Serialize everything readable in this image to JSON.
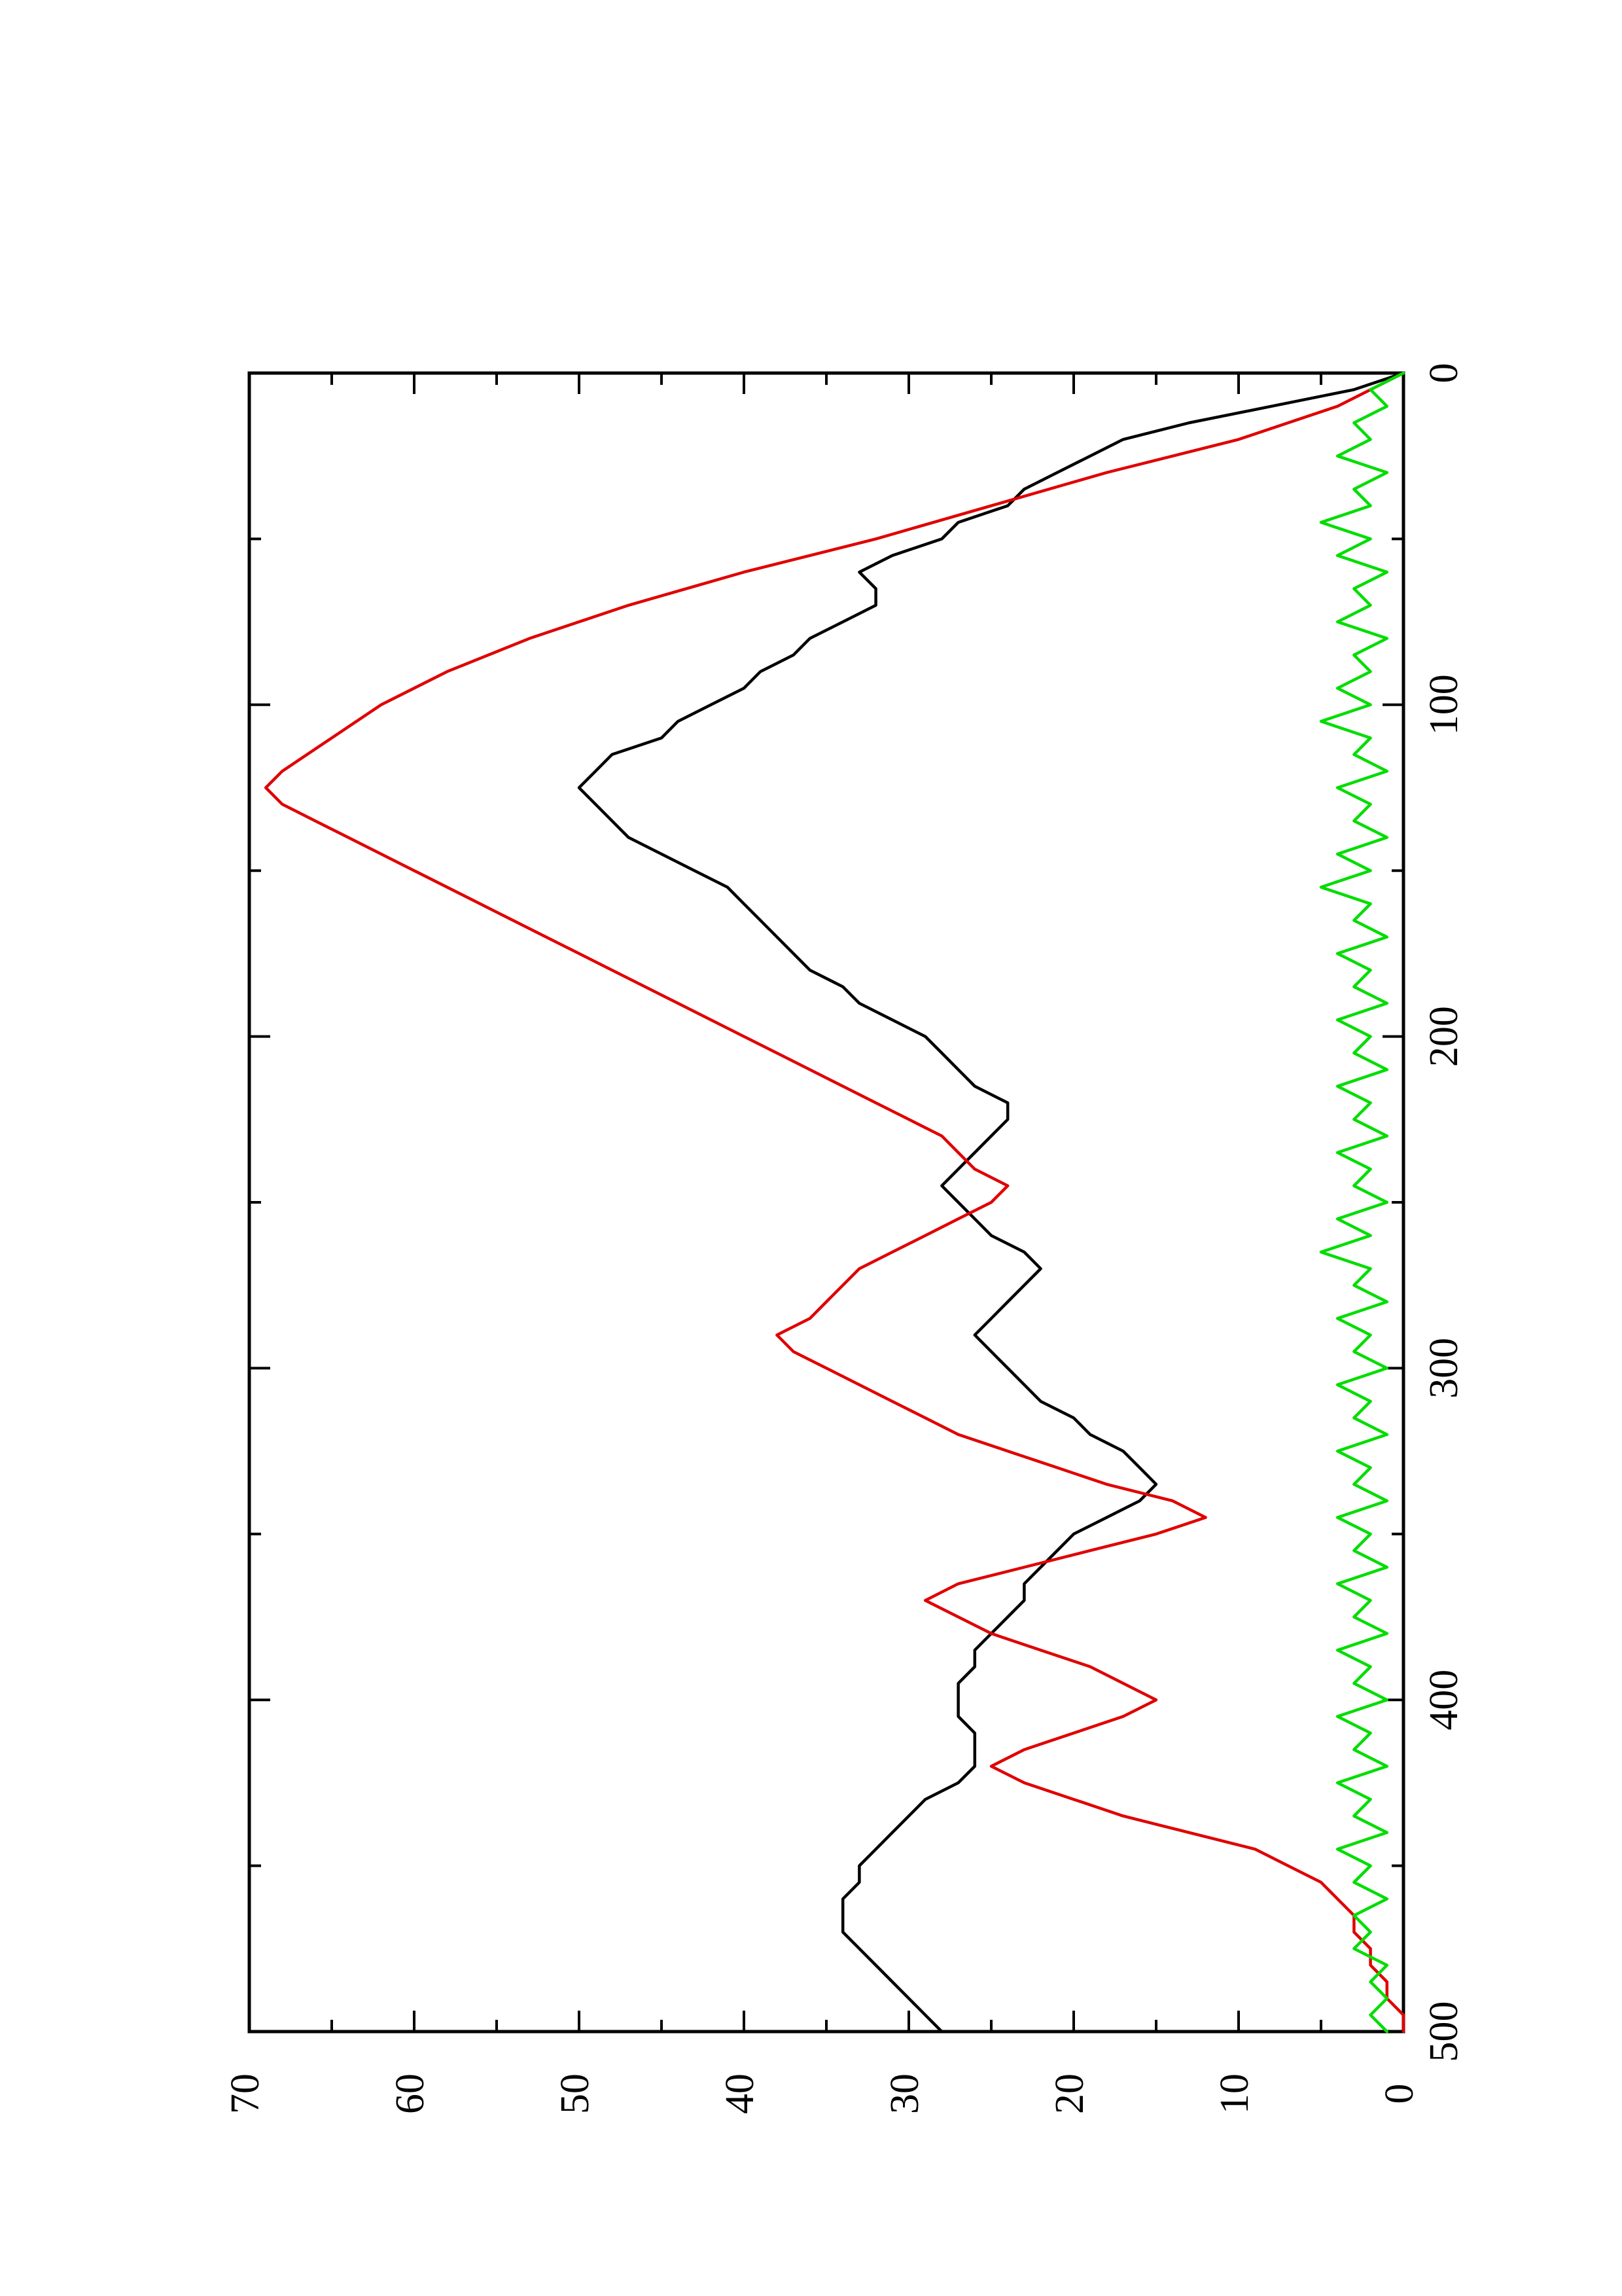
{
  "chart_data": {
    "type": "line",
    "title": "",
    "xlabel": "",
    "ylabel": "",
    "xlim": [
      0,
      500
    ],
    "ylim": [
      0,
      70
    ],
    "x_ticks": [
      0,
      100,
      200,
      300,
      400,
      500
    ],
    "x_tick_labels": [
      "0",
      "100",
      "200",
      "300",
      "400",
      "500"
    ],
    "y_ticks": [
      0,
      10,
      20,
      30,
      40,
      50,
      60,
      70
    ],
    "y_tick_labels": [
      "0",
      "10",
      "20",
      "30",
      "40",
      "50",
      "60",
      "70"
    ],
    "orientation": "rotated 90° counter-clockwise",
    "grid": false,
    "legend": "none",
    "series": [
      {
        "color": "#000000",
        "points": [
          [
            0,
            0
          ],
          [
            5,
            3
          ],
          [
            10,
            8
          ],
          [
            15,
            13
          ],
          [
            20,
            17
          ],
          [
            25,
            19
          ],
          [
            30,
            21
          ],
          [
            35,
            23
          ],
          [
            40,
            24
          ],
          [
            45,
            27
          ],
          [
            50,
            28
          ],
          [
            55,
            31
          ],
          [
            60,
            33
          ],
          [
            65,
            32
          ],
          [
            70,
            32
          ],
          [
            75,
            34
          ],
          [
            80,
            36
          ],
          [
            85,
            37
          ],
          [
            90,
            39
          ],
          [
            95,
            40
          ],
          [
            100,
            42
          ],
          [
            105,
            44
          ],
          [
            110,
            45
          ],
          [
            115,
            48
          ],
          [
            120,
            49
          ],
          [
            125,
            50
          ],
          [
            130,
            49
          ],
          [
            135,
            48
          ],
          [
            140,
            47
          ],
          [
            145,
            45
          ],
          [
            150,
            43
          ],
          [
            155,
            41
          ],
          [
            160,
            40
          ],
          [
            165,
            39
          ],
          [
            170,
            38
          ],
          [
            175,
            37
          ],
          [
            180,
            36
          ],
          [
            185,
            34
          ],
          [
            190,
            33
          ],
          [
            195,
            31
          ],
          [
            200,
            29
          ],
          [
            205,
            28
          ],
          [
            210,
            27
          ],
          [
            215,
            26
          ],
          [
            220,
            24
          ],
          [
            225,
            24
          ],
          [
            230,
            25
          ],
          [
            235,
            26
          ],
          [
            240,
            27
          ],
          [
            245,
            28
          ],
          [
            250,
            27
          ],
          [
            255,
            26
          ],
          [
            260,
            25
          ],
          [
            265,
            23
          ],
          [
            270,
            22
          ],
          [
            275,
            23
          ],
          [
            280,
            24
          ],
          [
            285,
            25
          ],
          [
            290,
            26
          ],
          [
            295,
            25
          ],
          [
            300,
            24
          ],
          [
            305,
            23
          ],
          [
            310,
            22
          ],
          [
            315,
            20
          ],
          [
            320,
            19
          ],
          [
            325,
            17
          ],
          [
            330,
            16
          ],
          [
            335,
            15
          ],
          [
            340,
            16
          ],
          [
            345,
            18
          ],
          [
            350,
            20
          ],
          [
            355,
            21
          ],
          [
            360,
            22
          ],
          [
            365,
            23
          ],
          [
            370,
            23
          ],
          [
            375,
            24
          ],
          [
            380,
            25
          ],
          [
            385,
            26
          ],
          [
            390,
            26
          ],
          [
            395,
            27
          ],
          [
            400,
            27
          ],
          [
            405,
            27
          ],
          [
            410,
            26
          ],
          [
            415,
            26
          ],
          [
            420,
            26
          ],
          [
            425,
            27
          ],
          [
            430,
            29
          ],
          [
            435,
            30
          ],
          [
            440,
            31
          ],
          [
            445,
            32
          ],
          [
            450,
            33
          ],
          [
            455,
            33
          ],
          [
            460,
            34
          ],
          [
            465,
            34
          ],
          [
            470,
            34
          ],
          [
            475,
            33
          ],
          [
            480,
            32
          ],
          [
            485,
            31
          ],
          [
            490,
            30
          ],
          [
            495,
            29
          ],
          [
            500,
            28
          ]
        ]
      },
      {
        "color": "#e00000",
        "points": [
          [
            0,
            0
          ],
          [
            10,
            4
          ],
          [
            20,
            10
          ],
          [
            30,
            18
          ],
          [
            40,
            25
          ],
          [
            50,
            32
          ],
          [
            60,
            40
          ],
          [
            70,
            47
          ],
          [
            80,
            53
          ],
          [
            90,
            58
          ],
          [
            100,
            62
          ],
          [
            110,
            65
          ],
          [
            120,
            68
          ],
          [
            125,
            69
          ],
          [
            130,
            68
          ],
          [
            135,
            66
          ],
          [
            140,
            64
          ],
          [
            150,
            60
          ],
          [
            160,
            56
          ],
          [
            170,
            52
          ],
          [
            180,
            48
          ],
          [
            190,
            44
          ],
          [
            200,
            40
          ],
          [
            205,
            38
          ],
          [
            210,
            36
          ],
          [
            215,
            34
          ],
          [
            220,
            32
          ],
          [
            225,
            30
          ],
          [
            230,
            28
          ],
          [
            235,
            27
          ],
          [
            240,
            26
          ],
          [
            245,
            24
          ],
          [
            250,
            25
          ],
          [
            255,
            27
          ],
          [
            260,
            29
          ],
          [
            265,
            31
          ],
          [
            270,
            33
          ],
          [
            275,
            34
          ],
          [
            280,
            35
          ],
          [
            285,
            36
          ],
          [
            290,
            38
          ],
          [
            295,
            37
          ],
          [
            300,
            35
          ],
          [
            305,
            33
          ],
          [
            310,
            31
          ],
          [
            315,
            29
          ],
          [
            320,
            27
          ],
          [
            325,
            24
          ],
          [
            330,
            21
          ],
          [
            335,
            18
          ],
          [
            340,
            14
          ],
          [
            345,
            12
          ],
          [
            350,
            15
          ],
          [
            355,
            19
          ],
          [
            360,
            23
          ],
          [
            365,
            27
          ],
          [
            370,
            29
          ],
          [
            375,
            27
          ],
          [
            380,
            25
          ],
          [
            385,
            22
          ],
          [
            390,
            19
          ],
          [
            395,
            17
          ],
          [
            400,
            15
          ],
          [
            405,
            17
          ],
          [
            410,
            20
          ],
          [
            415,
            23
          ],
          [
            420,
            25
          ],
          [
            425,
            23
          ],
          [
            430,
            20
          ],
          [
            435,
            17
          ],
          [
            440,
            13
          ],
          [
            445,
            9
          ],
          [
            450,
            7
          ],
          [
            455,
            5
          ],
          [
            460,
            4
          ],
          [
            465,
            3
          ],
          [
            470,
            3
          ],
          [
            475,
            2
          ],
          [
            480,
            2
          ],
          [
            485,
            1
          ],
          [
            490,
            1
          ],
          [
            495,
            0
          ],
          [
            500,
            0
          ]
        ]
      },
      {
        "color": "#00dd00",
        "points": [
          [
            0,
            0
          ],
          [
            5,
            2
          ],
          [
            10,
            1
          ],
          [
            15,
            3
          ],
          [
            20,
            2
          ],
          [
            25,
            4
          ],
          [
            30,
            1
          ],
          [
            35,
            3
          ],
          [
            40,
            2
          ],
          [
            45,
            5
          ],
          [
            50,
            2
          ],
          [
            55,
            4
          ],
          [
            60,
            1
          ],
          [
            65,
            3
          ],
          [
            70,
            2
          ],
          [
            75,
            4
          ],
          [
            80,
            1
          ],
          [
            85,
            3
          ],
          [
            90,
            2
          ],
          [
            95,
            4
          ],
          [
            100,
            2
          ],
          [
            105,
            5
          ],
          [
            110,
            2
          ],
          [
            115,
            3
          ],
          [
            120,
            1
          ],
          [
            125,
            4
          ],
          [
            130,
            2
          ],
          [
            135,
            3
          ],
          [
            140,
            1
          ],
          [
            145,
            4
          ],
          [
            150,
            2
          ],
          [
            155,
            5
          ],
          [
            160,
            2
          ],
          [
            165,
            3
          ],
          [
            170,
            1
          ],
          [
            175,
            4
          ],
          [
            180,
            2
          ],
          [
            185,
            3
          ],
          [
            190,
            1
          ],
          [
            195,
            4
          ],
          [
            200,
            2
          ],
          [
            205,
            3
          ],
          [
            210,
            1
          ],
          [
            215,
            4
          ],
          [
            220,
            2
          ],
          [
            225,
            3
          ],
          [
            230,
            1
          ],
          [
            235,
            4
          ],
          [
            240,
            2
          ],
          [
            245,
            3
          ],
          [
            250,
            1
          ],
          [
            255,
            4
          ],
          [
            260,
            2
          ],
          [
            265,
            5
          ],
          [
            270,
            2
          ],
          [
            275,
            3
          ],
          [
            280,
            1
          ],
          [
            285,
            4
          ],
          [
            290,
            2
          ],
          [
            295,
            3
          ],
          [
            300,
            1
          ],
          [
            305,
            4
          ],
          [
            310,
            2
          ],
          [
            315,
            3
          ],
          [
            320,
            1
          ],
          [
            325,
            4
          ],
          [
            330,
            2
          ],
          [
            335,
            3
          ],
          [
            340,
            1
          ],
          [
            345,
            4
          ],
          [
            350,
            2
          ],
          [
            355,
            3
          ],
          [
            360,
            1
          ],
          [
            365,
            4
          ],
          [
            370,
            2
          ],
          [
            375,
            3
          ],
          [
            380,
            1
          ],
          [
            385,
            4
          ],
          [
            390,
            2
          ],
          [
            395,
            3
          ],
          [
            400,
            1
          ],
          [
            405,
            4
          ],
          [
            410,
            2
          ],
          [
            415,
            3
          ],
          [
            420,
            1
          ],
          [
            425,
            4
          ],
          [
            430,
            2
          ],
          [
            435,
            3
          ],
          [
            440,
            1
          ],
          [
            445,
            4
          ],
          [
            450,
            2
          ],
          [
            455,
            3
          ],
          [
            460,
            1
          ],
          [
            465,
            3
          ],
          [
            470,
            2
          ],
          [
            475,
            3
          ],
          [
            480,
            1
          ],
          [
            485,
            2
          ],
          [
            490,
            1
          ],
          [
            495,
            2
          ],
          [
            500,
            1
          ]
        ]
      }
    ]
  }
}
